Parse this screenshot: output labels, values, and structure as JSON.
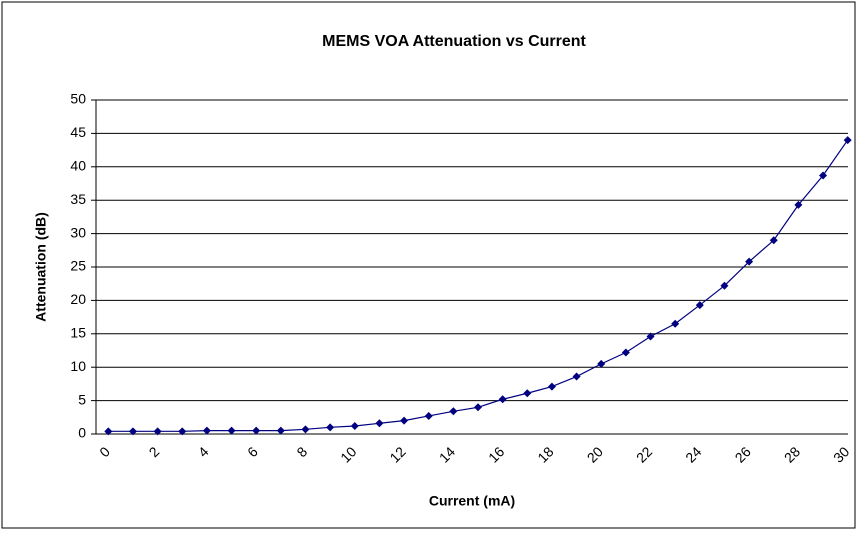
{
  "chart_data": {
    "type": "line",
    "title": "MEMS VOA Attenuation vs Current",
    "x_label": "Current (mA)",
    "y_label": "Attenuation (dB)",
    "categories": [
      "0",
      null,
      "2",
      null,
      "4",
      null,
      "6",
      null,
      "8",
      null,
      "10",
      null,
      "12",
      null,
      "14",
      null,
      "16",
      null,
      "18",
      null,
      "20",
      null,
      "22",
      null,
      "24",
      null,
      "26",
      null,
      "28",
      null,
      "30"
    ],
    "series": [
      {
        "name": "Attenuation",
        "color": "#000080",
        "values": [
          0.4,
          0.4,
          0.4,
          0.4,
          0.5,
          0.5,
          0.5,
          0.5,
          0.7,
          1.0,
          1.2,
          1.6,
          2.0,
          2.7,
          3.4,
          4.0,
          5.2,
          6.1,
          7.1,
          8.6,
          10.5,
          12.2,
          14.6,
          16.5,
          19.3,
          22.2,
          25.8,
          29.0,
          34.3,
          38.7,
          44.0
        ]
      }
    ],
    "ylim": [
      0,
      50
    ],
    "yticks": [
      0,
      5,
      10,
      15,
      20,
      25,
      30,
      35,
      40,
      45,
      50
    ],
    "grid": true
  }
}
